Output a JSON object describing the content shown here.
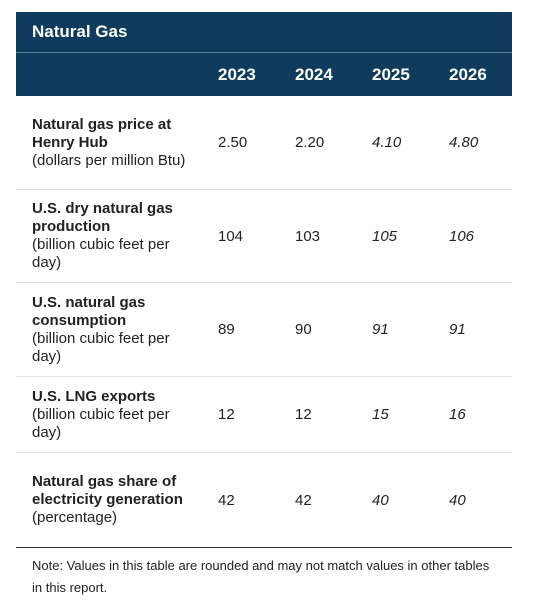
{
  "table": {
    "title": "Natural Gas",
    "columns": [
      "2023",
      "2024",
      "2025",
      "2026"
    ],
    "forecast_columns": [
      2,
      3
    ],
    "rows": [
      {
        "label": "Natural gas price at Henry Hub",
        "unit": "(dollars per million Btu)",
        "values": [
          "2.50",
          "2.20",
          "4.10",
          "4.80"
        ]
      },
      {
        "label": "U.S. dry natural gas production",
        "unit": "(billion cubic feet per day)",
        "values": [
          "104",
          "103",
          "105",
          "106"
        ]
      },
      {
        "label": "U.S. natural gas consumption",
        "unit": "(billion cubic feet per day)",
        "values": [
          "89",
          "90",
          "91",
          "91"
        ]
      },
      {
        "label": "U.S. LNG exports",
        "unit": "(billion cubic feet per day)",
        "values": [
          "12",
          "12",
          "15",
          "16"
        ]
      },
      {
        "label": "Natural gas share of electricity generation",
        "unit": "(percentage)",
        "values": [
          "42",
          "42",
          "40",
          "40"
        ]
      }
    ]
  },
  "note": "Note: Values in this table are rounded and may not match values in other tables in this report."
}
